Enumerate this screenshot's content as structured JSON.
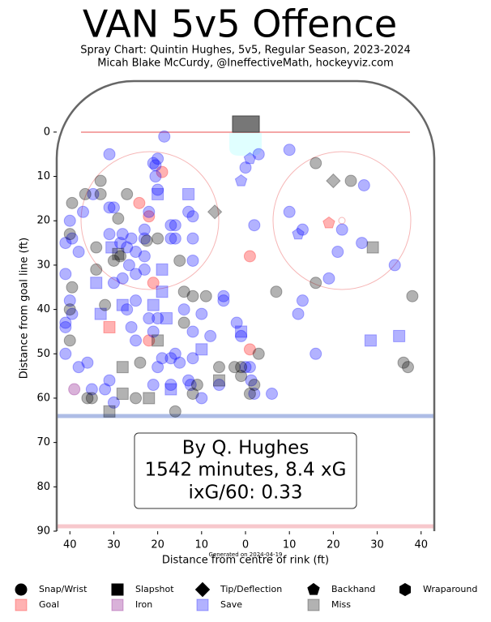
{
  "chart_data": {
    "type": "scatter",
    "title": "VAN 5v5 Offence",
    "subtitle": "Spray Chart: Quintin Hughes, 5v5, Regular Season, 2023-2024",
    "credit": "Micah Blake McCurdy, @IneffectiveMath, hockeyviz.com",
    "generated": "Generated on 2024-04-19",
    "xlabel": "Distance from centre of rink (ft)",
    "ylabel": "Distance from goal line (ft)",
    "info_box": [
      "By Q. Hughes",
      "1542 minutes, 8.4 xG",
      "ixG/60: 0.33"
    ],
    "xlim": [
      -43,
      43
    ],
    "ylim": [
      -11.5,
      90
    ],
    "y_inverted": true,
    "xticks": [
      {
        "value": -40,
        "label": "40"
      },
      {
        "value": -30,
        "label": "30"
      },
      {
        "value": -20,
        "label": "20"
      },
      {
        "value": -10,
        "label": "10"
      },
      0,
      10,
      20,
      30,
      40
    ],
    "yticks": [
      0,
      10,
      20,
      30,
      40,
      50,
      60,
      70,
      80,
      90
    ],
    "opacity": 0.3,
    "shot_types": [
      {
        "name": "Snap/Wrist",
        "marker": "circle"
      },
      {
        "name": "Slapshot",
        "marker": "square"
      },
      {
        "name": "Tip/Deflection",
        "marker": "diamond"
      },
      {
        "name": "Backhand",
        "marker": "pentagon"
      },
      {
        "name": "Wraparound",
        "marker": "hexagon"
      }
    ],
    "series": [
      {
        "name": "Goal",
        "color": "#ff0000",
        "x": [
          -24.2,
          -22,
          -21,
          -22,
          -19,
          1,
          1,
          -31,
          19
        ],
        "values": [
          16,
          19,
          34,
          47,
          9,
          28,
          49,
          44,
          20.5
        ],
        "types": [
          0,
          0,
          0,
          0,
          0,
          0,
          0,
          1,
          3
        ]
      },
      {
        "name": "Iron",
        "color": "#800080",
        "x": [
          -39
        ],
        "values": [
          58
        ],
        "types": [
          0
        ]
      },
      {
        "name": "Save",
        "color": "#0000ff",
        "x": [
          -41,
          -40,
          -39.5,
          -38,
          -37,
          -34.7,
          -41,
          -41,
          -41,
          -41,
          -38,
          -36,
          -39.5,
          -40,
          -34,
          -33,
          -35,
          -32,
          -30,
          -31,
          -31,
          -31,
          -30,
          -31,
          -30.5,
          -28.5,
          -28,
          -30,
          -28,
          -27,
          -26,
          -25,
          -25,
          -28,
          -27,
          -26.5,
          -25,
          -26,
          -25,
          -23,
          -23,
          -23,
          -23,
          -22,
          -22,
          -21,
          -21,
          -20,
          -20.5,
          -20.5,
          -20,
          -20,
          -19,
          -19,
          -19,
          -18.5,
          -17,
          -20,
          -18,
          -21,
          -20,
          -21,
          -17,
          -17,
          -17,
          -16,
          -16,
          -17,
          -16,
          -13,
          -13,
          -12,
          -12,
          -12,
          -14,
          -12,
          -12,
          -12.5,
          -13,
          -15,
          -10,
          -10,
          -10,
          -8,
          -6,
          -5,
          -5,
          -2,
          -1,
          -1,
          0,
          0,
          1,
          3,
          -1,
          2,
          1,
          1.3,
          2,
          6,
          10,
          10,
          13,
          12,
          13,
          12,
          16,
          19,
          22,
          21,
          26.5,
          27,
          34,
          28.5,
          35
        ],
        "values": [
          25,
          20,
          24,
          27,
          18,
          14,
          32,
          43,
          44,
          50,
          53,
          52,
          41,
          38,
          34,
          41,
          58,
          58,
          61,
          56,
          5,
          17,
          17,
          23,
          26,
          25,
          33,
          34,
          39,
          40,
          44,
          47,
          27,
          23,
          26,
          30,
          32,
          24,
          38,
          22,
          24,
          28,
          31,
          18,
          42,
          39,
          7,
          6,
          7.5,
          10,
          13,
          14,
          31,
          36,
          51,
          1,
          24,
          42,
          42,
          45,
          53,
          57,
          51,
          57,
          58,
          50,
          21,
          21,
          24,
          14,
          18,
          19,
          24,
          29,
          40,
          45,
          51,
          57,
          56,
          52,
          41,
          49,
          60,
          46,
          57,
          37,
          38,
          43,
          46,
          45,
          53,
          8,
          6,
          5,
          11,
          21,
          53,
          56,
          59,
          59,
          4,
          18,
          22,
          23,
          38,
          41,
          50,
          33,
          22,
          27,
          25,
          12,
          30,
          47,
          46
        ],
        "types": [
          0,
          0,
          0,
          0,
          0,
          0,
          0,
          0,
          0,
          0,
          0,
          0,
          0,
          0,
          1,
          1,
          0,
          0,
          0,
          0,
          0,
          0,
          0,
          0,
          1,
          0,
          0,
          0,
          1,
          0,
          0,
          0,
          0,
          0,
          0,
          0,
          0,
          0,
          0,
          0,
          0,
          0,
          0,
          0,
          0,
          1,
          0,
          0,
          0,
          0,
          0,
          1,
          1,
          1,
          0,
          0,
          0,
          0,
          1,
          0,
          0,
          0,
          0,
          0,
          1,
          0,
          0,
          0,
          0,
          1,
          0,
          0,
          0,
          0,
          0,
          0,
          0,
          0,
          0,
          0,
          0,
          1,
          0,
          0,
          0,
          0,
          0,
          0,
          0,
          1,
          0,
          0,
          3,
          0,
          3,
          0,
          0,
          0,
          0,
          0,
          0,
          0,
          0,
          3,
          0,
          0,
          0,
          0,
          0,
          0,
          0,
          0,
          0,
          1,
          1
        ]
      },
      {
        "name": "Miss",
        "color": "#000000",
        "x": [
          -39.5,
          -40,
          -36.5,
          -33,
          -33,
          -40,
          -40,
          -39.5,
          -34,
          -32,
          -34,
          -30,
          -29,
          -28.5,
          -27,
          -22.5,
          -20,
          -15,
          -14,
          -14,
          -12,
          -12,
          -11,
          -16,
          -36,
          -35,
          -25,
          -22,
          -28,
          -28,
          -24,
          -9,
          -6,
          -6,
          -2.5,
          -1,
          -1,
          3,
          1,
          2,
          7,
          16,
          16,
          24,
          38,
          36,
          37,
          29,
          -7,
          20,
          -31,
          -29,
          -20
        ],
        "values": [
          16,
          23,
          14,
          11,
          14,
          47,
          40,
          35,
          31,
          39,
          26,
          29,
          19.5,
          28,
          14,
          24.5,
          24,
          29,
          43,
          36,
          37,
          59,
          57,
          63,
          60,
          60,
          60,
          60,
          59,
          53,
          52,
          37,
          53,
          56,
          53,
          55,
          53,
          50,
          59,
          57,
          36,
          34,
          7,
          11,
          37,
          52,
          53,
          26,
          18,
          11,
          63,
          27.5,
          47
        ],
        "types": [
          0,
          0,
          0,
          0,
          0,
          0,
          0,
          0,
          0,
          0,
          0,
          0,
          0,
          0,
          0,
          0,
          0,
          0,
          0,
          0,
          0,
          0,
          0,
          0,
          0,
          0,
          0,
          1,
          1,
          1,
          0,
          0,
          0,
          1,
          0,
          0,
          0,
          0,
          0,
          0,
          0,
          0,
          0,
          0,
          0,
          0,
          0,
          1,
          2,
          2,
          1,
          1,
          1
        ]
      }
    ]
  }
}
